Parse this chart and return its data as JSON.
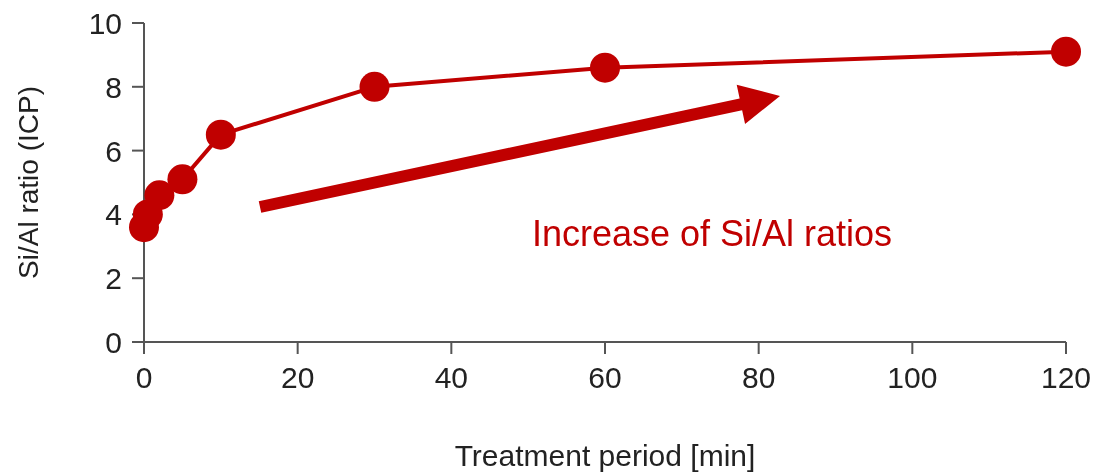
{
  "chart_data": {
    "type": "line",
    "xlabel": "Treatment period [min]",
    "ylabel": "Si/Al ratio (ICP)",
    "x": [
      0,
      0.5,
      2,
      5,
      10,
      30,
      60,
      120
    ],
    "series": [
      {
        "color": "#c00000",
        "values": [
          3.6,
          4.0,
          4.6,
          5.1,
          6.5,
          8.0,
          8.6,
          9.1
        ]
      }
    ],
    "xlim": [
      0,
      120
    ],
    "xticks": [
      0,
      20,
      40,
      60,
      80,
      100,
      120
    ],
    "ylim": [
      0,
      10
    ],
    "yticks": [
      0,
      2,
      4,
      6,
      8,
      10
    ],
    "marker": "circle",
    "line_style": "solid",
    "grid": false,
    "annotations": [
      "Increase of Si/Al ratios"
    ]
  }
}
